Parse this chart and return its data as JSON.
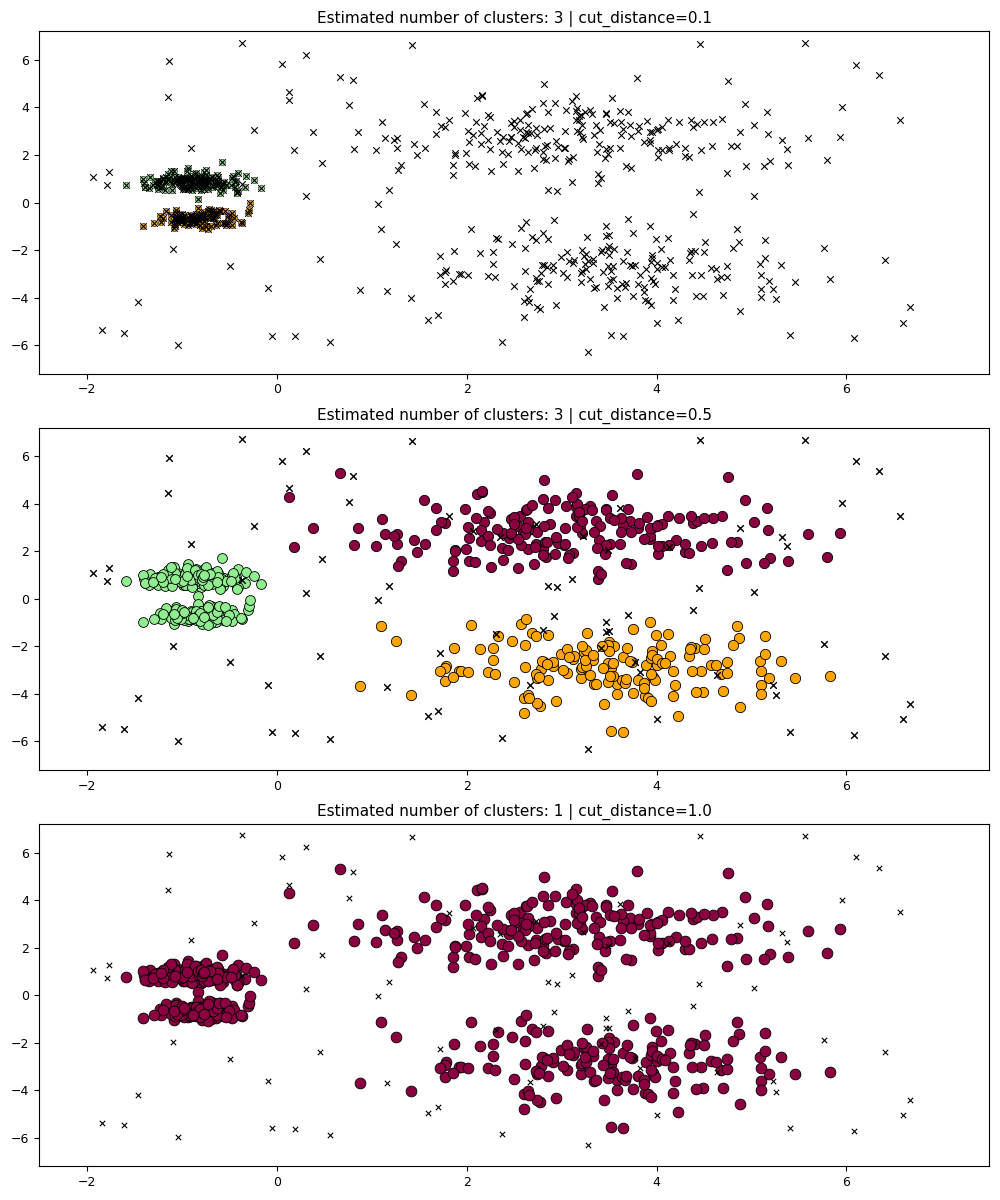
{
  "titles": [
    "Estimated number of clusters: 3 | cut_distance=0.1",
    "Estimated number of clusters: 3 | cut_distance=0.5",
    "Estimated number of clusters: 1 | cut_distance=1.0"
  ],
  "xlim": [
    -2.5,
    7.5
  ],
  "ylim": [
    -7.2,
    7.2
  ],
  "xticks": [
    -2,
    0,
    2,
    4,
    6
  ],
  "yticks": [
    -6,
    -4,
    -2,
    0,
    2,
    4,
    6
  ],
  "noise_color": "black",
  "noise_marker": "x",
  "title_fontsize": 11,
  "color_green": "#90EE90",
  "color_orange": "#FFA500",
  "color_crimson": "#8B0040",
  "edgecolor": "black",
  "seed": 42
}
